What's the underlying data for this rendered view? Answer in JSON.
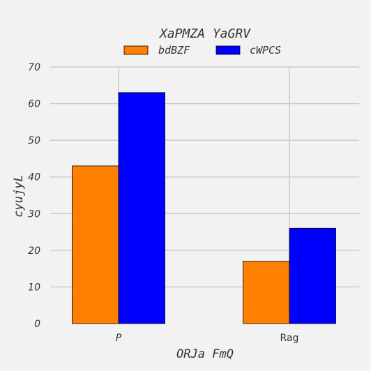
{
  "chart_data": {
    "type": "bar",
    "title": "XaPMZA YaGRV",
    "xlabel": "ORJa FmQ",
    "ylabel": "cyujyL",
    "categories": [
      "P",
      "Rag"
    ],
    "series": [
      {
        "name": "bdBZF",
        "values": [
          43,
          17
        ],
        "color": "#ff8000"
      },
      {
        "name": "cWPCS",
        "values": [
          63,
          26
        ],
        "color": "#0000ff"
      }
    ],
    "ylim": [
      0,
      70
    ],
    "yticks": [
      "0",
      "10",
      "20",
      "30",
      "40",
      "50",
      "60",
      "70"
    ],
    "grid": true,
    "legend_position": "top-center"
  }
}
